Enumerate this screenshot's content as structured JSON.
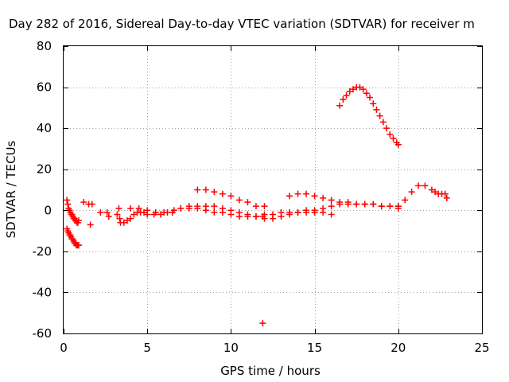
{
  "chart_data": {
    "type": "scatter",
    "title": "Day 282 of 2016, Sidereal Day-to-day VTEC variation (SDTVAR) for receiver m",
    "xlabel": "GPS time / hours",
    "ylabel": "SDTVAR / TECUs",
    "xlim": [
      0,
      25
    ],
    "ylim": [
      -60,
      80
    ],
    "xticks": [
      0,
      5,
      10,
      15,
      20,
      25
    ],
    "yticks": [
      -60,
      -40,
      -20,
      0,
      20,
      40,
      60,
      80
    ],
    "xtick_labels": [
      "0",
      "5",
      "10",
      "15",
      "20",
      "25"
    ],
    "ytick_labels": [
      "-60",
      "-40",
      "-20",
      "0",
      "20",
      "40",
      "60",
      "80"
    ],
    "grid": true,
    "marker": "+",
    "series": [
      {
        "name": "SDTVAR",
        "color": "#ff0000",
        "x": [
          0.2,
          0.25,
          0.3,
          0.35,
          0.4,
          0.45,
          0.5,
          0.55,
          0.6,
          0.65,
          0.7,
          0.75,
          0.8,
          0.85,
          0.9,
          0.2,
          0.25,
          0.3,
          0.35,
          0.4,
          0.45,
          0.5,
          0.55,
          0.6,
          0.65,
          0.7,
          0.75,
          0.8,
          0.85,
          0.9,
          1.2,
          1.5,
          1.6,
          1.7,
          2.2,
          2.6,
          2.7,
          3.2,
          3.3,
          3.35,
          3.4,
          3.6,
          3.8,
          4.0,
          4.2,
          4.4,
          4.6,
          4.8,
          5.0,
          5.4,
          5.8,
          6.2,
          6.6,
          7.0,
          7.5,
          8.0,
          8.5,
          9.0,
          9.5,
          10.0,
          10.5,
          11.0,
          11.5,
          11.9,
          4.0,
          4.5,
          5.0,
          5.5,
          6.0,
          6.5,
          7.0,
          7.5,
          8.0,
          8.5,
          9.0,
          9.5,
          10.0,
          10.5,
          11.0,
          11.5,
          12.0,
          12.5,
          13.0,
          13.5,
          14.0,
          14.5,
          15.0,
          15.5,
          16.0,
          8.0,
          8.5,
          9.0,
          9.5,
          10.0,
          10.5,
          11.0,
          11.5,
          12.0,
          12.0,
          12.5,
          13.0,
          13.5,
          14.0,
          14.5,
          15.0,
          15.5,
          16.0,
          16.5,
          17.0,
          17.5,
          18.0,
          18.5,
          19.0,
          19.5,
          20.0,
          13.5,
          14.0,
          14.5,
          15.0,
          15.5,
          16.0,
          16.5,
          17.0,
          17.5,
          18.0,
          18.5,
          19.0,
          19.5,
          20.0,
          20.0,
          20.4,
          20.8,
          21.2,
          21.6,
          22.0,
          22.2,
          22.4,
          22.6,
          22.8,
          22.9,
          16.5,
          16.7,
          16.9,
          17.1,
          17.3,
          17.5,
          17.7,
          17.9,
          18.1,
          18.3,
          18.5,
          18.7,
          18.9,
          19.1,
          19.3,
          19.5,
          19.7,
          19.9,
          20.0,
          11.9
        ],
        "y": [
          5,
          3,
          1,
          0,
          -1,
          -2,
          -2,
          -3,
          -4,
          -4,
          -5,
          -5,
          -6,
          -6,
          -5,
          -9,
          -10,
          -11,
          -12,
          -12,
          -13,
          -14,
          -14,
          -15,
          -16,
          -16,
          -17,
          -17,
          -17,
          -17,
          4,
          3,
          -7,
          3,
          -1,
          -1,
          -3,
          -2,
          1,
          -4,
          -6,
          -6,
          -5,
          -4,
          -2,
          -1,
          -1,
          -1,
          -2,
          -2,
          -2,
          -1,
          0,
          1,
          1,
          1,
          0,
          -1,
          -1,
          -2,
          -3,
          -3,
          -3,
          -3,
          1,
          1,
          0,
          -1,
          -1,
          -1,
          1,
          2,
          2,
          2,
          2,
          1,
          0,
          -1,
          -2,
          -3,
          -4,
          -4,
          -3,
          -2,
          -1,
          -1,
          -1,
          -1,
          -2,
          10,
          10,
          9,
          8,
          7,
          5,
          4,
          2,
          2,
          -2,
          -2,
          -1,
          -1,
          -1,
          0,
          0,
          1,
          2,
          3,
          3,
          3,
          3,
          3,
          2,
          2,
          1,
          7,
          8,
          8,
          7,
          6,
          5,
          4,
          4,
          3,
          3,
          3,
          2,
          2,
          2,
          2,
          5,
          9,
          12,
          12,
          10,
          9,
          8,
          8,
          8,
          6,
          51,
          54,
          56,
          58,
          59,
          60,
          60,
          59,
          57,
          55,
          52,
          49,
          46,
          43,
          40,
          37,
          35,
          33,
          32,
          -55
        ]
      }
    ]
  }
}
